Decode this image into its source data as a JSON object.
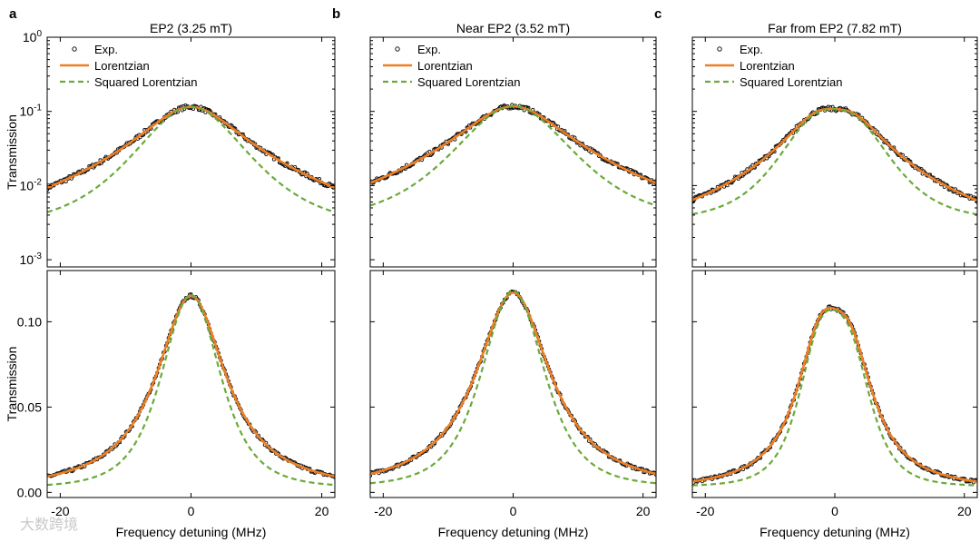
{
  "colors": {
    "experiment": "#111111",
    "lorentzian": "#f07f22",
    "squared_lorentzian": "#6aaa3a",
    "frame": "#000000"
  },
  "legend": {
    "exp": "Exp.",
    "lorentzian": "Lorentzian",
    "squared": "Squared Lorentzian"
  },
  "xlabel": "Frequency detuning (MHz)",
  "ylabel": "Transmission",
  "watermark": "大数跨境",
  "chart_data": [
    {
      "type": "line",
      "letter": "a",
      "title": "EP2 (3.25 mT)",
      "x_range": [
        -22,
        22
      ],
      "x_ticks": [
        {
          "v": -20,
          "label": "-20"
        },
        {
          "v": 0,
          "label": "0"
        },
        {
          "v": 20,
          "label": "20"
        }
      ],
      "top": {
        "yscale": "log",
        "ylim": [
          0.0008,
          1
        ],
        "y_ticks": [
          {
            "v": 1,
            "base": "10",
            "exp": "0"
          },
          {
            "v": 0.1,
            "base": "10",
            "exp": "-1"
          },
          {
            "v": 0.01,
            "base": "10",
            "exp": "-2"
          },
          {
            "v": 0.001,
            "base": "10",
            "exp": "-3"
          }
        ]
      },
      "bottom": {
        "yscale": "linear",
        "ylim": [
          -0.003,
          0.13
        ],
        "y_ticks": [
          {
            "v": 0,
            "label": "0.00"
          },
          {
            "v": 0.05,
            "label": "0.05"
          },
          {
            "v": 0.1,
            "label": "0.10"
          }
        ]
      },
      "model": {
        "kind": "single",
        "peak": 0.115,
        "center": 0,
        "gamma": 6.5,
        "noise": 0.00014,
        "sq_peak": 0.113,
        "sq_gamma": 8.2,
        "sq_floor": 0.0027
      }
    },
    {
      "type": "line",
      "letter": "b",
      "title": "Near EP2 (3.52 mT)",
      "x_range": [
        -22,
        22
      ],
      "x_ticks": [
        {
          "v": -20,
          "label": "-20"
        },
        {
          "v": 0,
          "label": "0"
        },
        {
          "v": 20,
          "label": "20"
        }
      ],
      "top": {
        "yscale": "log",
        "ylim": [
          0.0008,
          1
        ],
        "y_ticks": [
          {
            "v": 1,
            "base": "10",
            "exp": "0"
          },
          {
            "v": 0.1,
            "base": "10",
            "exp": "-1"
          },
          {
            "v": 0.01,
            "base": "10",
            "exp": "-2"
          },
          {
            "v": 0.001,
            "base": "10",
            "exp": "-3"
          }
        ]
      },
      "bottom": {
        "yscale": "linear",
        "ylim": [
          -0.003,
          0.13
        ],
        "y_ticks": [
          {
            "v": 0,
            "label": "0.00"
          },
          {
            "v": 0.05,
            "label": "0.05"
          },
          {
            "v": 0.1,
            "label": "0.10"
          }
        ]
      },
      "model": {
        "kind": "single",
        "peak": 0.117,
        "center": 0,
        "gamma": 7.0,
        "noise": 8e-05,
        "sq_peak": 0.115,
        "sq_gamma": 8.8,
        "sq_floor": 0.0032
      }
    },
    {
      "type": "line",
      "letter": "c",
      "title": "Far from EP2 (7.82 mT)",
      "x_range": [
        -22,
        22
      ],
      "x_ticks": [
        {
          "v": -20,
          "label": "-20"
        },
        {
          "v": 0,
          "label": "0"
        },
        {
          "v": 20,
          "label": "20"
        }
      ],
      "top": {
        "yscale": "log",
        "ylim": [
          0.0008,
          1
        ],
        "y_ticks": [
          {
            "v": 1,
            "base": "10",
            "exp": "0"
          },
          {
            "v": 0.1,
            "base": "10",
            "exp": "-1"
          },
          {
            "v": 0.01,
            "base": "10",
            "exp": "-2"
          },
          {
            "v": 0.001,
            "base": "10",
            "exp": "-3"
          }
        ]
      },
      "bottom": {
        "yscale": "linear",
        "ylim": [
          -0.003,
          0.13
        ],
        "y_ticks": [
          {
            "v": 0,
            "label": "0.00"
          },
          {
            "v": 0.05,
            "label": "0.05"
          },
          {
            "v": 0.1,
            "label": "0.10"
          }
        ]
      },
      "model": {
        "kind": "double",
        "a1": 0.072,
        "c1": -2.3,
        "a2": 0.063,
        "c2": 2.4,
        "gamma": 4.6,
        "noise": 0.0005,
        "sq_floor": 0.0033
      }
    }
  ]
}
